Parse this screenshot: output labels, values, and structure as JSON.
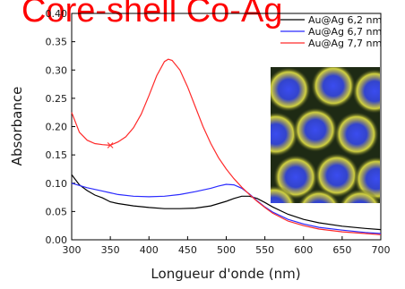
{
  "title": "Core-shell Co-Ag",
  "chart_data": {
    "type": "line",
    "xlabel": "Longueur d'onde (nm)",
    "ylabel": "Absorbance",
    "xlim": [
      300,
      700
    ],
    "ylim": [
      0,
      0.4
    ],
    "xticks": [
      300,
      350,
      400,
      450,
      500,
      550,
      600,
      650,
      700
    ],
    "yticks": [
      0.0,
      0.05,
      0.1,
      0.15,
      0.2,
      0.25,
      0.3,
      0.35,
      0.4
    ],
    "xtick_labels": [
      "300",
      "350",
      "400",
      "450",
      "500",
      "550",
      "600",
      "650",
      "700"
    ],
    "ytick_labels": [
      "0.00",
      "0.05",
      "0.10",
      "0.15",
      "0.20",
      "0.25",
      "0.30",
      "0.35",
      "0.40"
    ],
    "grid": false,
    "legend_position": "top-right",
    "series": [
      {
        "name": "Au@Ag 6,2 nm",
        "color": "#000000",
        "x": [
          300,
          310,
          320,
          330,
          340,
          350,
          360,
          380,
          400,
          420,
          440,
          460,
          480,
          500,
          510,
          520,
          530,
          540,
          550,
          560,
          580,
          600,
          620,
          650,
          680,
          700
        ],
        "y": [
          0.115,
          0.097,
          0.087,
          0.079,
          0.074,
          0.067,
          0.064,
          0.06,
          0.057,
          0.055,
          0.055,
          0.056,
          0.06,
          0.068,
          0.073,
          0.077,
          0.077,
          0.073,
          0.066,
          0.058,
          0.045,
          0.036,
          0.03,
          0.024,
          0.02,
          0.018
        ]
      },
      {
        "name": "Au@Ag 6,7 nm",
        "color": "#2a2aff",
        "x": [
          300,
          320,
          340,
          350,
          360,
          380,
          400,
          420,
          440,
          460,
          480,
          490,
          500,
          510,
          520,
          530,
          540,
          550,
          560,
          580,
          600,
          620,
          650,
          680,
          700
        ],
        "y": [
          0.1,
          0.092,
          0.086,
          0.083,
          0.08,
          0.077,
          0.076,
          0.077,
          0.08,
          0.085,
          0.091,
          0.095,
          0.098,
          0.097,
          0.091,
          0.081,
          0.069,
          0.058,
          0.049,
          0.036,
          0.028,
          0.022,
          0.017,
          0.013,
          0.011
        ]
      },
      {
        "name": "Au@Ag 7,7 nm",
        "color": "#ff2a2a",
        "x": [
          300,
          310,
          320,
          330,
          340,
          350,
          360,
          370,
          380,
          390,
          400,
          410,
          420,
          425,
          430,
          440,
          450,
          460,
          470,
          480,
          490,
          500,
          510,
          520,
          530,
          540,
          550,
          560,
          580,
          600,
          620,
          650,
          680,
          700
        ],
        "y": [
          0.225,
          0.19,
          0.176,
          0.17,
          0.168,
          0.167,
          0.173,
          0.182,
          0.198,
          0.222,
          0.255,
          0.29,
          0.315,
          0.319,
          0.317,
          0.3,
          0.27,
          0.235,
          0.2,
          0.17,
          0.145,
          0.125,
          0.108,
          0.093,
          0.08,
          0.068,
          0.057,
          0.047,
          0.033,
          0.025,
          0.019,
          0.014,
          0.011,
          0.009
        ]
      }
    ]
  },
  "inset": {
    "background": "#1e2a14",
    "particle_core_color": "#3344dd",
    "particle_shell_color": "#c8c83a"
  }
}
